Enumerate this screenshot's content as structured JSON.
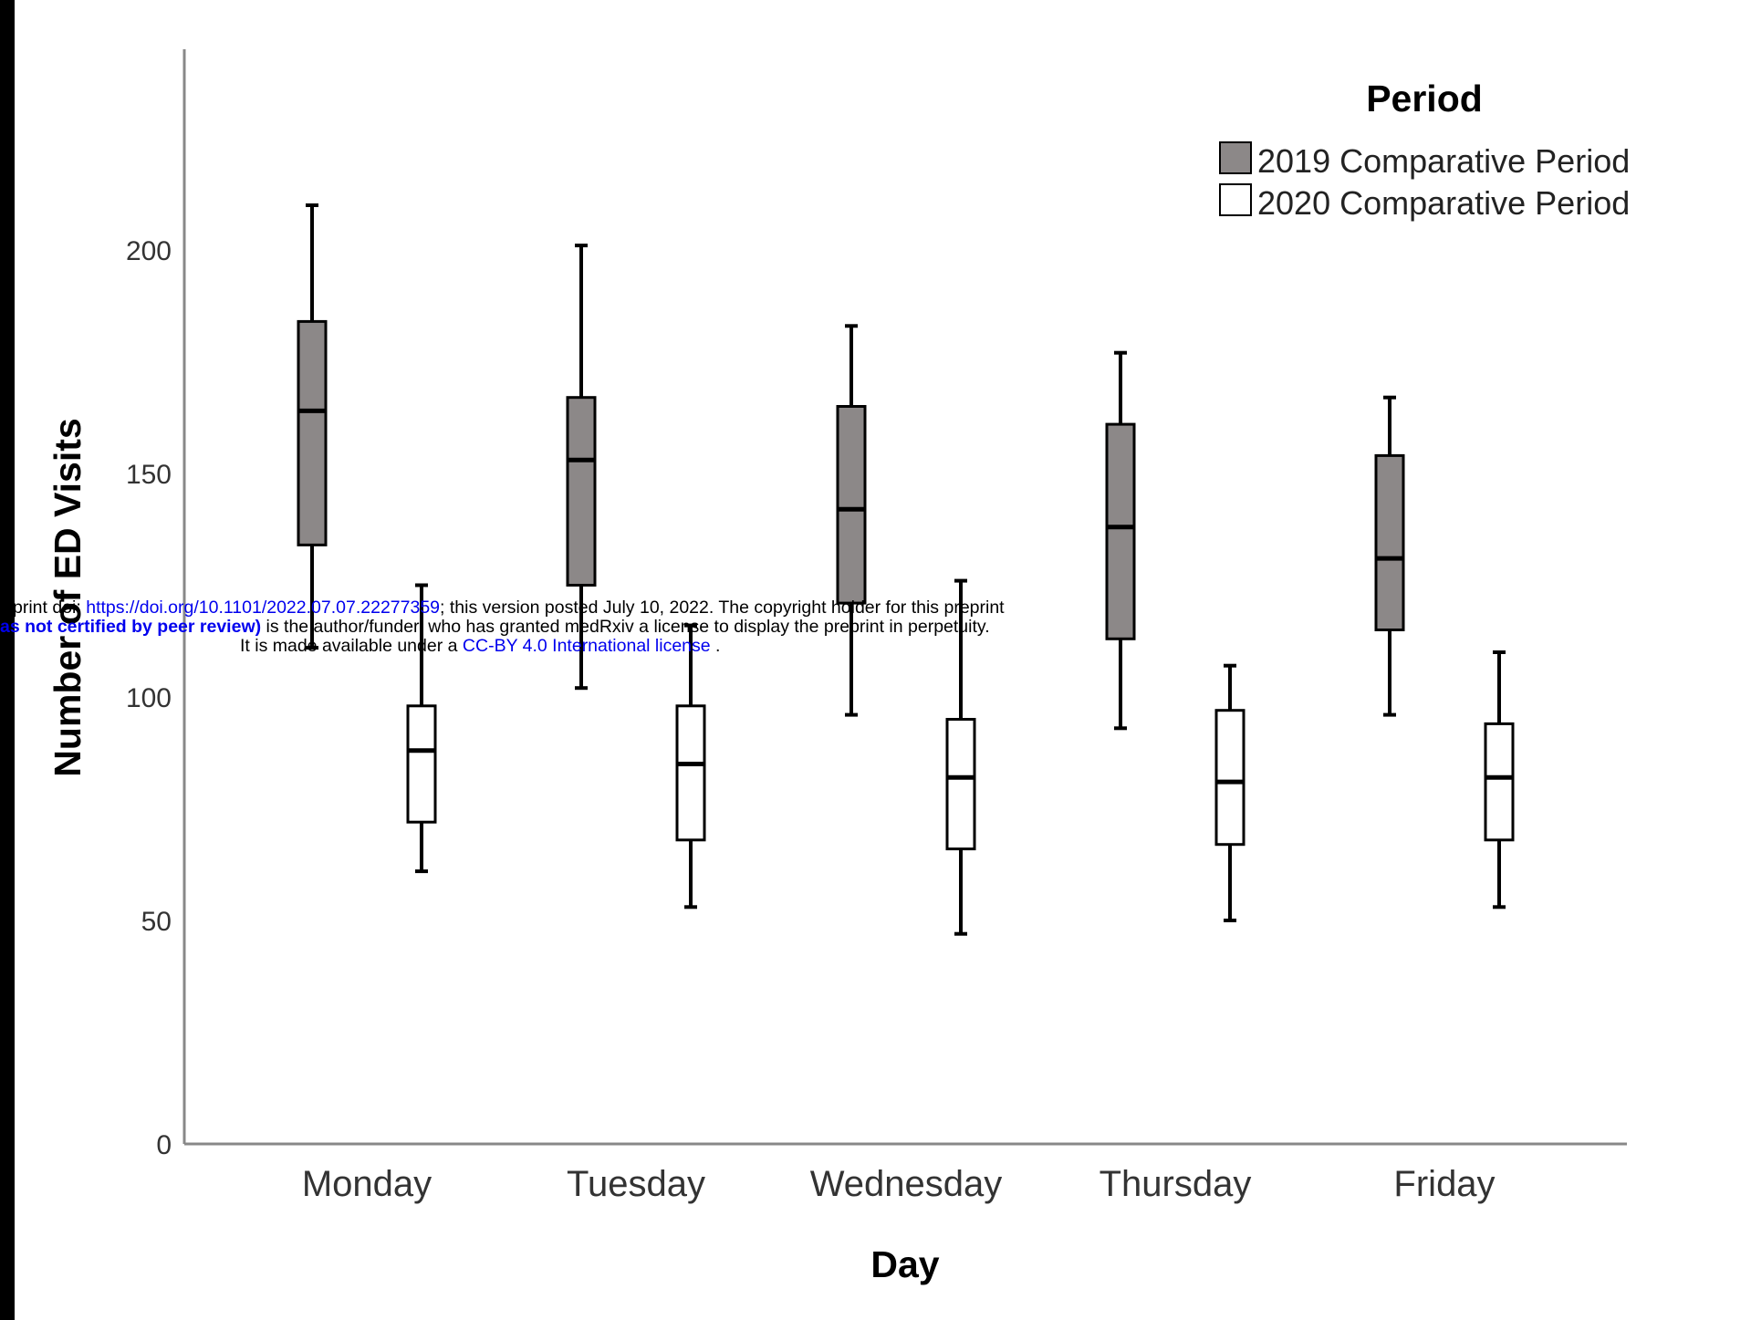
{
  "chart_data": {
    "type": "boxplot",
    "title": "",
    "xlabel": "Day",
    "ylabel": "Number of ED Visits",
    "ylim": [
      0,
      245
    ],
    "yticks": [
      0,
      50,
      100,
      150,
      200
    ],
    "categories": [
      "Monday",
      "Tuesday",
      "Wednesday",
      "Thursday",
      "Friday"
    ],
    "legend": {
      "title": "Period",
      "position": "top-right"
    },
    "series": [
      {
        "name": "2019 Comparative Period",
        "color": "#8c8888",
        "boxes": [
          {
            "whisker_low": 111,
            "q1": 134,
            "median": 164,
            "q3": 184,
            "whisker_high": 210
          },
          {
            "whisker_low": 102,
            "q1": 125,
            "median": 153,
            "q3": 167,
            "whisker_high": 201
          },
          {
            "whisker_low": 96,
            "q1": 121,
            "median": 142,
            "q3": 165,
            "whisker_high": 183
          },
          {
            "whisker_low": 93,
            "q1": 113,
            "median": 138,
            "q3": 161,
            "whisker_high": 177
          },
          {
            "whisker_low": 96,
            "q1": 115,
            "median": 131,
            "q3": 154,
            "whisker_high": 167
          }
        ]
      },
      {
        "name": "2020 Comparative Period",
        "color": "#ffffff",
        "boxes": [
          {
            "whisker_low": 61,
            "q1": 72,
            "median": 88,
            "q3": 98,
            "whisker_high": 125
          },
          {
            "whisker_low": 53,
            "q1": 68,
            "median": 85,
            "q3": 98,
            "whisker_high": 116
          },
          {
            "whisker_low": 47,
            "q1": 66,
            "median": 82,
            "q3": 95,
            "whisker_high": 126
          },
          {
            "whisker_low": 50,
            "q1": 67,
            "median": 81,
            "q3": 97,
            "whisker_high": 107
          },
          {
            "whisker_low": 53,
            "q1": 68,
            "median": 82,
            "q3": 94,
            "whisker_high": 110
          }
        ]
      }
    ]
  },
  "watermark": {
    "line1_prefix": "print doi: ",
    "line1_link": "https://doi.org/10.1101/2022.07.07.22277359",
    "line1_suffix": "; this version posted July 10, 2022. The copyright holder for this preprint",
    "line2_bold": "as not certified by peer review)",
    "line2_suffix": " is the author/funder, who has granted medRxiv a license to display the preprint in perpetuity.",
    "line3_prefix": "It is made available under a ",
    "line3_link": "CC-BY 4.0 International license",
    "line3_suffix": " ."
  }
}
